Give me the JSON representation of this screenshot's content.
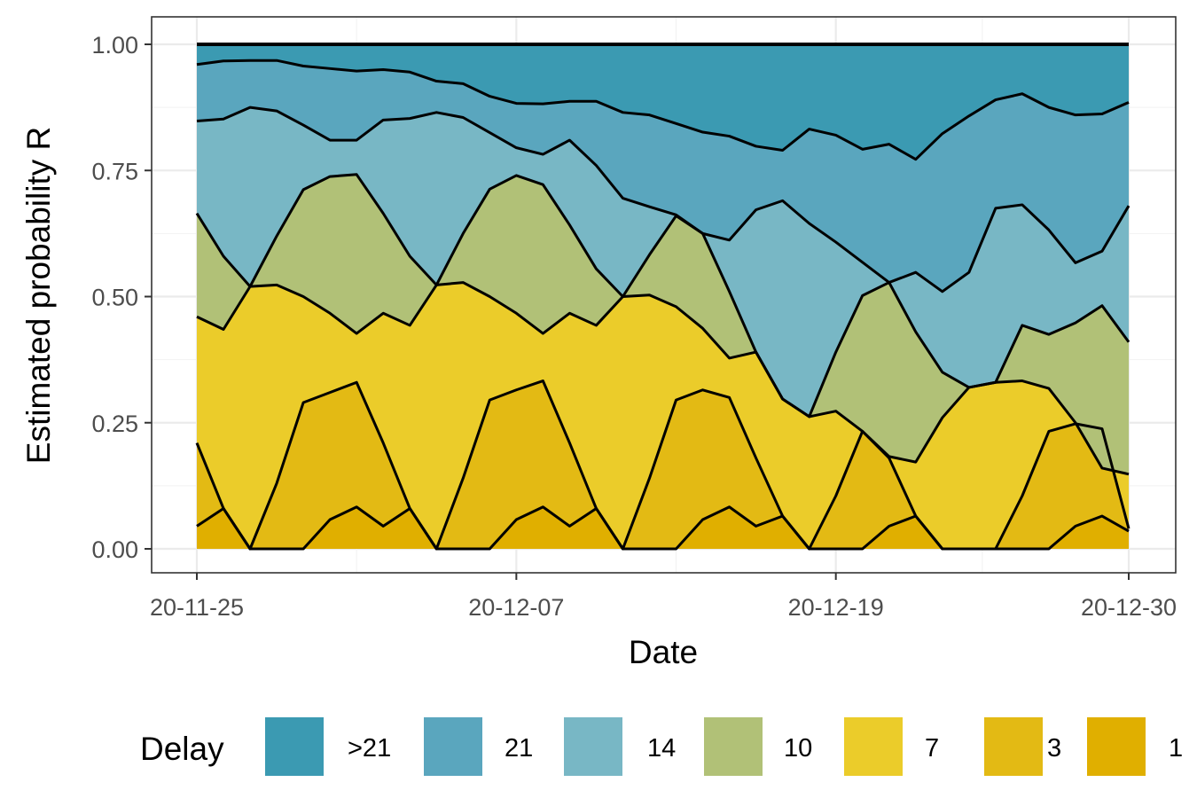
{
  "chart_data": {
    "type": "area",
    "stacked": true,
    "xlabel": "Date",
    "ylabel": "Estimated probability R",
    "ylim": [
      0,
      1
    ],
    "xlim": [
      "2020-11-25",
      "2020-12-30"
    ],
    "x_tick_labels": [
      "20-11-25",
      "20-12-07",
      "20-12-19",
      "20-12-30"
    ],
    "y_tick_labels": [
      "0.00",
      "0.25",
      "0.50",
      "0.75",
      "1.00"
    ],
    "y_ticks": [
      0,
      0.25,
      0.5,
      0.75,
      1.0
    ],
    "grid": true,
    "legend": {
      "title": "Delay",
      "position": "bottom"
    },
    "x": [
      "2020-11-25",
      "2020-11-26",
      "2020-11-27",
      "2020-11-28",
      "2020-11-29",
      "2020-11-30",
      "2020-12-01",
      "2020-12-02",
      "2020-12-03",
      "2020-12-04",
      "2020-12-05",
      "2020-12-06",
      "2020-12-07",
      "2020-12-08",
      "2020-12-09",
      "2020-12-10",
      "2020-12-11",
      "2020-12-12",
      "2020-12-13",
      "2020-12-14",
      "2020-12-15",
      "2020-12-16",
      "2020-12-17",
      "2020-12-18",
      "2020-12-19",
      "2020-12-20",
      "2020-12-21",
      "2020-12-22",
      "2020-12-23",
      "2020-12-24",
      "2020-12-25",
      "2020-12-26",
      "2020-12-27",
      "2020-12-28",
      "2020-12-29",
      "2020-12-30"
    ],
    "cumulative_boundaries": [
      [
        0.045,
        0.08,
        0.0,
        0.0,
        0.0,
        0.058,
        0.083,
        0.045,
        0.08,
        0.0,
        0.0,
        0.0,
        0.058,
        0.083,
        0.045,
        0.08,
        0.0,
        0.0,
        0.0,
        0.058,
        0.083,
        0.045,
        0.065,
        0.0,
        0.0,
        0.0,
        0.045,
        0.065,
        0.0,
        0.0,
        0.0,
        0.0,
        0.0,
        0.045,
        0.065,
        0.035
      ],
      [
        0.21,
        0.08,
        0.0,
        0.13,
        0.29,
        0.31,
        0.33,
        0.21,
        0.08,
        0.0,
        0.14,
        0.295,
        0.315,
        0.333,
        0.21,
        0.08,
        0.0,
        0.14,
        0.295,
        0.315,
        0.3,
        0.18,
        0.065,
        0.0,
        0.105,
        0.233,
        0.18,
        0.065,
        0.0,
        0.0,
        0.0,
        0.105,
        0.233,
        0.248,
        0.238,
        0.04
      ],
      [
        0.46,
        0.435,
        0.52,
        0.523,
        0.5,
        0.467,
        0.427,
        0.467,
        0.443,
        0.523,
        0.528,
        0.5,
        0.467,
        0.427,
        0.467,
        0.443,
        0.5,
        0.503,
        0.48,
        0.437,
        0.378,
        0.39,
        0.297,
        0.262,
        0.273,
        0.233,
        0.183,
        0.172,
        0.26,
        0.32,
        0.33,
        0.333,
        0.318,
        0.25,
        0.16,
        0.148
      ],
      [
        0.665,
        0.58,
        0.52,
        0.62,
        0.712,
        0.738,
        0.742,
        0.665,
        0.58,
        0.523,
        0.625,
        0.713,
        0.74,
        0.722,
        0.642,
        0.555,
        0.5,
        0.583,
        0.66,
        0.625,
        0.51,
        0.39,
        0.297,
        0.262,
        0.39,
        0.502,
        0.528,
        0.43,
        0.35,
        0.32,
        0.33,
        0.443,
        0.425,
        0.448,
        0.482,
        0.41
      ],
      [
        0.848,
        0.852,
        0.875,
        0.868,
        0.84,
        0.81,
        0.81,
        0.85,
        0.853,
        0.865,
        0.855,
        0.825,
        0.795,
        0.782,
        0.81,
        0.76,
        0.695,
        0.678,
        0.662,
        0.625,
        0.612,
        0.672,
        0.69,
        0.645,
        0.608,
        0.568,
        0.528,
        0.548,
        0.51,
        0.548,
        0.675,
        0.682,
        0.632,
        0.567,
        0.59,
        0.68
      ],
      [
        0.96,
        0.967,
        0.968,
        0.968,
        0.957,
        0.952,
        0.947,
        0.95,
        0.945,
        0.927,
        0.922,
        0.897,
        0.883,
        0.882,
        0.887,
        0.887,
        0.865,
        0.86,
        0.843,
        0.826,
        0.818,
        0.798,
        0.79,
        0.832,
        0.82,
        0.792,
        0.802,
        0.772,
        0.823,
        0.858,
        0.89,
        0.902,
        0.875,
        0.86,
        0.862,
        0.885
      ],
      [
        1,
        1,
        1,
        1,
        1,
        1,
        1,
        1,
        1,
        1,
        1,
        1,
        1,
        1,
        1,
        1,
        1,
        1,
        1,
        1,
        1,
        1,
        1,
        1,
        1,
        1,
        1,
        1,
        1,
        1,
        1,
        1,
        1,
        1,
        1,
        1
      ]
    ],
    "series": [
      {
        "name": "1",
        "color": "#E0AF00"
      },
      {
        "name": "3",
        "color": "#E3BA14"
      },
      {
        "name": "7",
        "color": "#EBCC2A"
      },
      {
        "name": "10",
        "color": "#B1C177"
      },
      {
        "name": "14",
        "color": "#78B7C5"
      },
      {
        "name": "21",
        "color": "#5AA6BE"
      },
      {
        "name": ">21",
        "color": "#3B9AB2"
      }
    ],
    "legend_order": [
      ">21",
      "21",
      "14",
      "10",
      "7",
      "3",
      "1"
    ]
  }
}
